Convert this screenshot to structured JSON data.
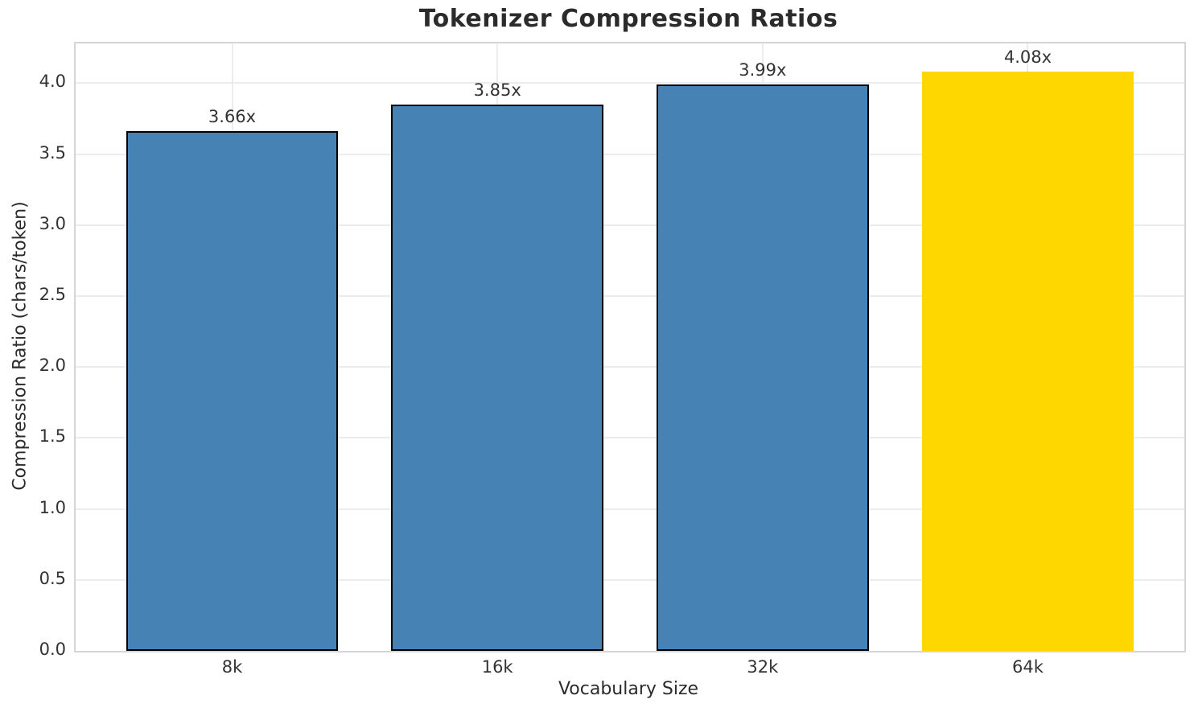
{
  "figure": {
    "title": "Tokenizer Compression Ratios"
  },
  "chart_data": {
    "type": "bar",
    "title": "Tokenizer Compression Ratios",
    "xlabel": "Vocabulary Size",
    "ylabel": "Compression Ratio (chars/token)",
    "categories": [
      "8k",
      "16k",
      "32k",
      "64k"
    ],
    "values": [
      3.66,
      3.85,
      3.99,
      4.08
    ],
    "bar_labels": [
      "3.66x",
      "3.85x",
      "3.99x",
      "4.08x"
    ],
    "bar_colors": [
      "#4682B4",
      "#4682B4",
      "#4682B4",
      "#FFD700"
    ],
    "bar_edge_colors": [
      "#000000",
      "#000000",
      "#000000",
      "none"
    ],
    "highlighted_category": "64k",
    "ylim": [
      0,
      4.28
    ],
    "yticks": [
      0,
      0.5,
      1,
      1.5,
      2,
      2.5,
      3,
      3.5,
      4
    ],
    "ytick_labels": [
      "0.0",
      "0.5",
      "1.0",
      "1.5",
      "2.0",
      "2.5",
      "3.0",
      "3.5",
      "4.0"
    ],
    "grid": true,
    "grid_color": "#ececec",
    "spine_color": "#d5d5d5",
    "legend_position": "none"
  },
  "colors": {
    "bar_primary": "#4682B4",
    "bar_highlight": "#FFD700",
    "bar_edge": "#000000",
    "background": "#ffffff",
    "text": "#2b2b2b",
    "tick_text": "#333333"
  }
}
